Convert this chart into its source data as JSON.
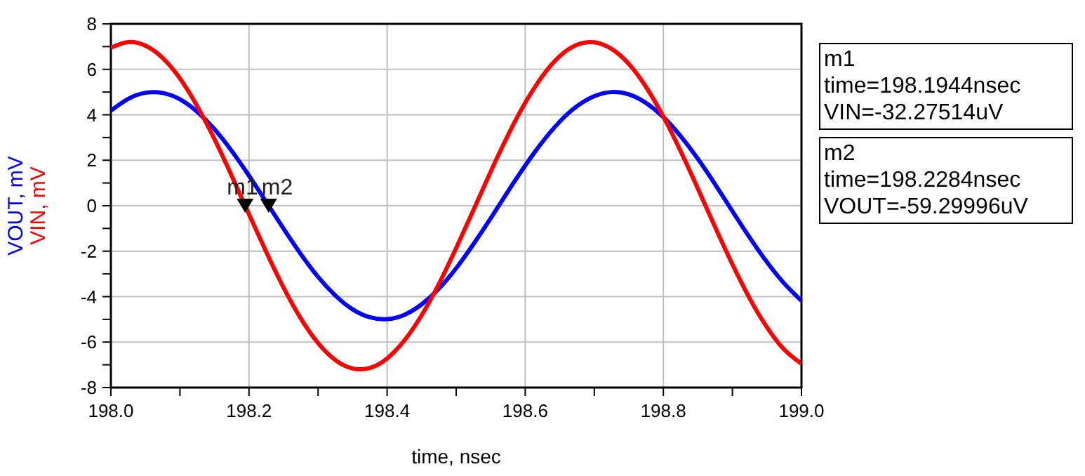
{
  "chart_data": {
    "type": "line",
    "xlabel": "time, nsec",
    "x": [
      198.0,
      198.025,
      198.05,
      198.075,
      198.1,
      198.125,
      198.15,
      198.175,
      198.2,
      198.225,
      198.25,
      198.275,
      198.3,
      198.325,
      198.35,
      198.375,
      198.4,
      198.425,
      198.45,
      198.475,
      198.5,
      198.525,
      198.55,
      198.575,
      198.6,
      198.625,
      198.65,
      198.675,
      198.7,
      198.725,
      198.75,
      198.775,
      198.8,
      198.825,
      198.85,
      198.875,
      198.9,
      198.925,
      198.95,
      198.975,
      199.0
    ],
    "series": [
      {
        "name": "VOUT, mV",
        "color": "#0000ff",
        "values": [
          4.18,
          4.7,
          4.97,
          4.96,
          4.68,
          4.13,
          3.37,
          2.41,
          1.32,
          0.16,
          -1.01,
          -2.13,
          -3.13,
          -3.95,
          -4.56,
          -4.91,
          -4.99,
          -4.8,
          -4.34,
          -3.65,
          -2.75,
          -1.69,
          -0.55,
          0.63,
          1.77,
          2.81,
          3.7,
          4.38,
          4.82,
          5.0,
          4.9,
          4.52,
          3.9,
          3.06,
          2.06,
          0.94,
          -0.24,
          -1.4,
          -2.48,
          -3.42,
          -4.18
        ]
      },
      {
        "name": "VIN, mV",
        "color": "#ff0000",
        "values": [
          6.95,
          7.2,
          7.04,
          6.5,
          5.6,
          4.38,
          2.93,
          1.31,
          -0.38,
          -2.04,
          -3.6,
          -4.96,
          -6.04,
          -6.79,
          -7.16,
          -7.14,
          -6.72,
          -5.93,
          -4.82,
          -3.44,
          -1.86,
          -0.19,
          1.5,
          3.1,
          4.53,
          5.71,
          6.58,
          7.08,
          7.19,
          6.9,
          6.24,
          5.22,
          3.92,
          2.4,
          0.75,
          -0.94,
          -2.58,
          -4.08,
          -5.35,
          -6.33,
          -6.95
        ]
      },
      {
        "type": "scatter",
        "color": "#000000",
        "marker": "triangle",
        "x": [
          198.1944,
          198.2284
        ],
        "values": [
          0,
          0
        ]
      }
    ],
    "xlim": [
      198.0,
      199.0
    ],
    "xticks": [
      {
        "value": 198.0,
        "label": "198.0"
      },
      {
        "value": 198.1,
        "label": null
      },
      {
        "value": 198.2,
        "label": "198.2"
      },
      {
        "value": 198.3,
        "label": null
      },
      {
        "value": 198.4,
        "label": "198.4"
      },
      {
        "value": 198.5,
        "label": null
      },
      {
        "value": 198.6,
        "label": "198.6"
      },
      {
        "value": 198.7,
        "label": null
      },
      {
        "value": 198.8,
        "label": "198.8"
      },
      {
        "value": 198.9,
        "label": null
      },
      {
        "value": 199.0,
        "label": "199.0"
      }
    ],
    "ylim": [
      -8,
      8
    ],
    "yticks": [
      -8,
      {
        "value": -7,
        "label": null
      },
      -6,
      {
        "value": -5,
        "label": null
      },
      -4,
      {
        "value": -3,
        "label": null
      },
      -2,
      {
        "value": -1,
        "label": null
      },
      0,
      {
        "value": 1,
        "label": null
      },
      2,
      {
        "value": 3,
        "label": null
      },
      4,
      {
        "value": 5,
        "label": null
      },
      6,
      {
        "value": 7,
        "label": null
      },
      8
    ],
    "grid": true,
    "line_style": "solid",
    "marker": "none",
    "annotations": [
      {
        "text": "m1",
        "x": 198.1944,
        "y": 0
      },
      {
        "text": "m2",
        "x": 198.2284,
        "y": 0
      },
      "m1\ntime=198.1944nsec\nVIN=-32.27514uV",
      "m2\ntime=198.2284nsec\nVOUT=-59.29996uV"
    ]
  }
}
